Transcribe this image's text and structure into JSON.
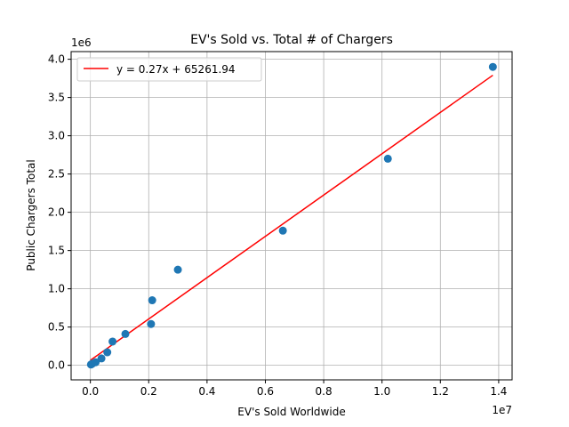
{
  "chart_data": {
    "type": "scatter",
    "title": "EV's Sold vs. Total # of Chargers",
    "xlabel": "EV's Sold Worldwide",
    "ylabel": "Public Chargers Total",
    "x_offset_label": "1e7",
    "y_offset_label": "1e6",
    "xlim": [
      -660000,
      14460000
    ],
    "ylim": [
      -190000,
      4100000
    ],
    "x_ticks": [
      0,
      2000000,
      4000000,
      6000000,
      8000000,
      10000000,
      12000000,
      14000000
    ],
    "x_tick_labels": [
      "0.0",
      "0.2",
      "0.4",
      "0.6",
      "0.8",
      "1.0",
      "1.2",
      "1.4"
    ],
    "y_ticks": [
      0,
      500000,
      1000000,
      1500000,
      2000000,
      2500000,
      3000000,
      3500000,
      4000000
    ],
    "y_tick_labels": [
      "0.0",
      "0.5",
      "1.0",
      "1.5",
      "2.0",
      "2.5",
      "3.0",
      "3.5",
      "4.0"
    ],
    "grid": true,
    "points": [
      {
        "x": 20000,
        "y": 10000
      },
      {
        "x": 60000,
        "y": 20000
      },
      {
        "x": 180000,
        "y": 40000
      },
      {
        "x": 380000,
        "y": 90000
      },
      {
        "x": 580000,
        "y": 170000
      },
      {
        "x": 760000,
        "y": 310000
      },
      {
        "x": 1200000,
        "y": 410000
      },
      {
        "x": 2080000,
        "y": 540000
      },
      {
        "x": 2120000,
        "y": 850000
      },
      {
        "x": 3000000,
        "y": 1250000
      },
      {
        "x": 6600000,
        "y": 1760000
      },
      {
        "x": 10200000,
        "y": 2700000
      },
      {
        "x": 13800000,
        "y": 3900000
      }
    ],
    "fit": {
      "label": "y = 0.27x + 65261.94",
      "slope": 0.27,
      "intercept": 65261.94,
      "x_range": [
        0,
        13800000
      ],
      "color": "#ff0000"
    },
    "point_color": "#1f77b4",
    "legend": "top-left"
  }
}
